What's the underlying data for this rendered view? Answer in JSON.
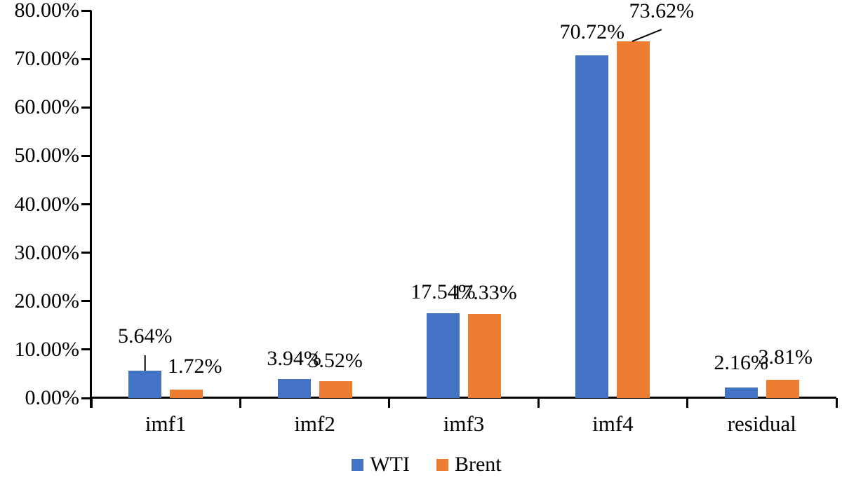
{
  "figure": {
    "background": "#ffffff",
    "text_color": "#000000",
    "axis_color": "#000000"
  },
  "chart_data": {
    "type": "bar",
    "title": "",
    "xlabel": "",
    "ylabel": "",
    "categories": [
      "imf1",
      "imf2",
      "imf3",
      "imf4",
      "residual"
    ],
    "series": [
      {
        "name": "WTI",
        "color": "#4472C4",
        "values": [
          5.64,
          3.94,
          17.54,
          70.72,
          2.16
        ],
        "labels": [
          "5.64%",
          "3.94%",
          "17.54%",
          "70.72%",
          "2.16%"
        ]
      },
      {
        "name": "Brent",
        "color": "#ED7D31",
        "values": [
          1.72,
          3.52,
          17.33,
          73.62,
          3.81
        ],
        "labels": [
          "1.72%",
          "3.52%",
          "17.33%",
          "73.62%",
          "3.81%"
        ]
      }
    ],
    "y_axis": {
      "min": 0,
      "max": 80,
      "tick_step": 10,
      "tick_labels": [
        "0.00%",
        "10.00%",
        "20.00%",
        "30.00%",
        "40.00%",
        "50.00%",
        "60.00%",
        "70.00%",
        "80.00%"
      ]
    },
    "grid": false,
    "legend": {
      "position": "bottom-center",
      "items": [
        "WTI",
        "Brent"
      ]
    }
  }
}
